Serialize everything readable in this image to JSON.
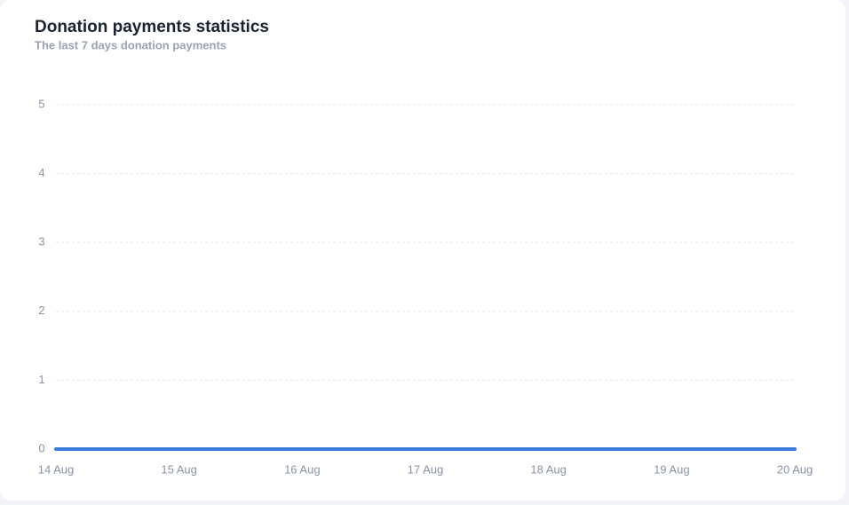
{
  "chart_data": {
    "type": "line",
    "title": "Donation payments statistics",
    "subtitle": "The last 7 days donation payments",
    "categories": [
      "14 Aug",
      "15 Aug",
      "16 Aug",
      "17 Aug",
      "18 Aug",
      "19 Aug",
      "20 Aug"
    ],
    "values": [
      0,
      0,
      0,
      0,
      0,
      0,
      0
    ],
    "color": "#3b7ddd",
    "ylim": [
      0,
      5
    ],
    "yticks": [
      0,
      1,
      2,
      3,
      4,
      5
    ],
    "grid": true
  }
}
